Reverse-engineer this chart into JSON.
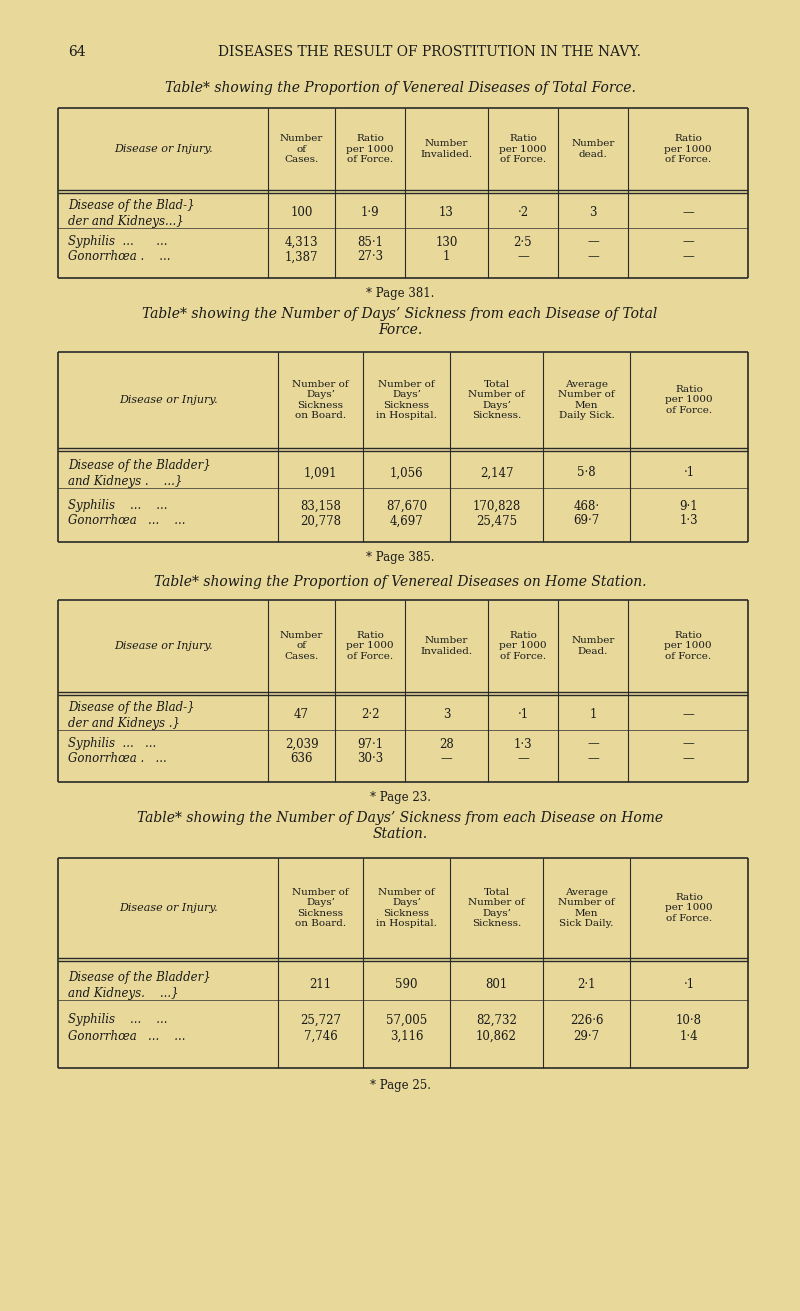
{
  "bg_color": "#e8d99a",
  "page_header": "64    DISEASES THE RESULT OF PROSTITUTION IN THE NAVY.",
  "tables": [
    {
      "title": "Table* showing the Proportion of Venereal Diseases of Total Force.",
      "footnote": "* Page 381.",
      "headers": [
        "Disease or Injury.",
        "Number\nof\nCases.",
        "Ratio\nper 1000\nof Force.",
        "Number\nInvalided.",
        "Ratio\nper 1000\nof Force.",
        "Number\ndead.",
        "Ratio\nper 1000\nof Force."
      ],
      "rows": [
        [
          "Disease of the Blad-{der and Kidneys...}",
          "100",
          "1·9",
          "13",
          "·2",
          "3",
          "—"
        ],
        [
          "Syphilis  ...     ...",
          "4,313",
          "85·1",
          "130",
          "2·5",
          "—",
          "—"
        ],
        [
          "Gonorrhœa .   ...",
          "1,387",
          "27·3",
          "1",
          "—",
          "—",
          "—"
        ]
      ]
    },
    {
      "title": "Table* showing the Number of Days’ Sickness from each Disease of Total\nForce.",
      "footnote": "* Page 385.",
      "headers": [
        "Disease or Injury.",
        "Number of\nDays’\nSickness\non Board.",
        "Number of\nDays’\nSickness\nin Hospital.",
        "Total\nNumber of\nDays’\nSickness.",
        "Average\nNumber of\nMen\nDaily Sick.",
        "Ratio\nper 1000\nof Force."
      ],
      "rows": [
        [
          "Disease of the Bladder{\nand Kidneys .    ...}",
          "1,091",
          "1,056",
          "2,147",
          "5·8",
          "·1"
        ],
        [
          "Syphilis    ...    ...",
          "83,158",
          "87,670",
          "170,828",
          "468·",
          "9·1"
        ],
        [
          "Gonorrhœa   ...    ...",
          "20,778",
          "4,697",
          "25,475",
          "69·7",
          "1·3"
        ]
      ]
    },
    {
      "title": "Table* showing the Proportion of Venereal Diseases on Home Station.",
      "footnote": "* Page 23.",
      "headers": [
        "Disease or Injury.",
        "Number\nof\nCases.",
        "Ratio\nper 1000\nof Force.",
        "Number\nInvalided.",
        "Ratio\nper 1000\nof Force.",
        "Number\nDead.",
        "Ratio\nper 1000\nof Force."
      ],
      "rows": [
        [
          "Disease of the Blad-{der and Kidneys .}",
          "47",
          "2·2",
          "3",
          "·1",
          "1",
          "—"
        ],
        [
          "Syphilis  ...   ...",
          "2,039",
          "97·1",
          "28",
          "1·3",
          "—",
          "—"
        ],
        [
          "Gonorrhœa .   ...",
          "636",
          "30·3",
          "—",
          "—",
          "—",
          "—"
        ]
      ]
    },
    {
      "title": "Table* showing the Number of Days’ Sickness from each Disease on Home\nStation.",
      "footnote": "* Page 25.",
      "headers": [
        "Disease or Injury.",
        "Number of\nDays’\nSickness\non Board.",
        "Number of\nDays’\nSickness\nin Hospital.",
        "Total\nNumber of\nDays’\nSickness.",
        "Average\nNumber of\nMen\nSick Daily.",
        "Ratio\nper 1000\nof Force."
      ],
      "rows": [
        [
          "Disease of the Bladder{\nand Kidneys.   ...}",
          "211",
          "590",
          "801",
          "2·1",
          "·1"
        ],
        [
          "Syphilis    ...    ...",
          "25,727",
          "57,005",
          "82,732",
          "226·6",
          "10·8"
        ],
        [
          "Gonorrhœa   ...    ...",
          "7,746",
          "3,116",
          "10,862",
          "29·7",
          "1·4"
        ]
      ]
    }
  ]
}
